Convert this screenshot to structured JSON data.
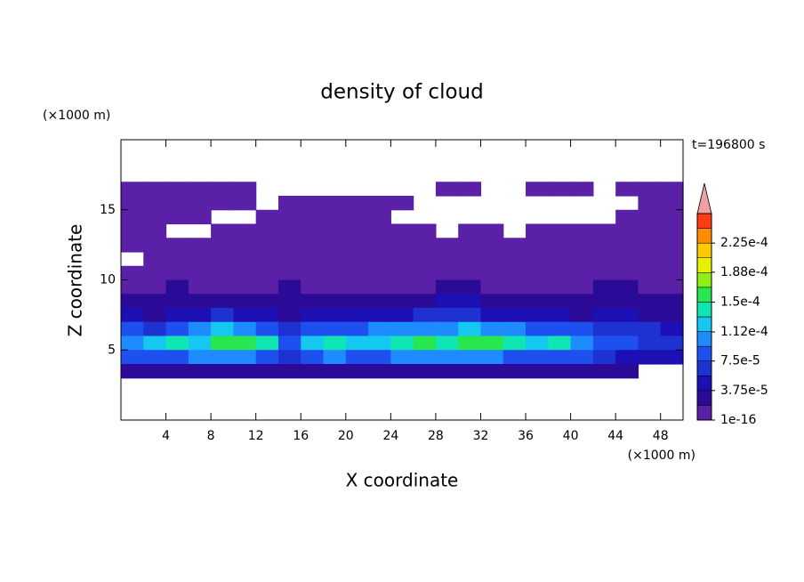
{
  "chart_data": {
    "type": "contour",
    "title": "density of cloud",
    "xlabel": "X coordinate",
    "ylabel": "Z coordinate",
    "x_unit": "(×1000 m)",
    "y_unit": "(×1000 m)",
    "annotation": "t=196800 s",
    "xlim": [
      0,
      50
    ],
    "ylim": [
      0,
      20
    ],
    "xticks": [
      4,
      8,
      12,
      16,
      20,
      24,
      28,
      32,
      36,
      40,
      44,
      48
    ],
    "yticks": [
      5,
      10,
      15
    ],
    "x_centers": [
      1,
      3,
      5,
      7,
      9,
      11,
      13,
      15,
      17,
      19,
      21,
      23,
      25,
      27,
      29,
      31,
      33,
      35,
      37,
      39,
      41,
      43,
      45,
      47,
      49
    ],
    "z_centers": [
      16.5,
      15.5,
      14.5,
      13.5,
      12.5,
      11.5,
      10.5,
      9.5,
      8.5,
      7.5,
      6.5,
      5.5,
      4.5,
      3.5
    ],
    "values": [
      [
        5e-06,
        5e-06,
        5e-06,
        5e-06,
        5e-06,
        5e-06,
        null,
        null,
        null,
        null,
        null,
        null,
        null,
        null,
        5e-06,
        5e-06,
        null,
        null,
        5e-06,
        5e-06,
        5e-06,
        null,
        5e-06,
        5e-06,
        5e-06
      ],
      [
        5e-06,
        5e-06,
        5e-06,
        5e-06,
        5e-06,
        5e-06,
        null,
        5e-06,
        5e-06,
        5e-06,
        5e-06,
        5e-06,
        5e-06,
        null,
        null,
        null,
        null,
        null,
        null,
        null,
        null,
        null,
        null,
        5e-06,
        5e-06
      ],
      [
        5e-06,
        5e-06,
        5e-06,
        5e-06,
        null,
        null,
        5e-06,
        5e-06,
        5e-06,
        5e-06,
        5e-06,
        5e-06,
        null,
        null,
        null,
        null,
        null,
        null,
        null,
        null,
        null,
        null,
        5e-06,
        5e-06,
        5e-06
      ],
      [
        5e-06,
        5e-06,
        null,
        null,
        5e-06,
        5e-06,
        5e-06,
        5e-06,
        5e-06,
        5e-06,
        5e-06,
        5e-06,
        5e-06,
        5e-06,
        null,
        5e-06,
        5e-06,
        null,
        5e-06,
        5e-06,
        5e-06,
        5e-06,
        5e-06,
        5e-06,
        5e-06
      ],
      [
        5e-06,
        5e-06,
        5e-06,
        5e-06,
        5e-06,
        5e-06,
        5e-06,
        5e-06,
        5e-06,
        5e-06,
        5e-06,
        5e-06,
        5e-06,
        5e-06,
        5e-06,
        5e-06,
        5e-06,
        5e-06,
        5e-06,
        5e-06,
        5e-06,
        5e-06,
        5e-06,
        5e-06,
        5e-06
      ],
      [
        null,
        5e-06,
        5e-06,
        5e-06,
        5e-06,
        5e-06,
        5e-06,
        5e-06,
        5e-06,
        5e-06,
        5e-06,
        5e-06,
        5e-06,
        5e-06,
        5e-06,
        5e-06,
        5e-06,
        5e-06,
        5e-06,
        5e-06,
        5e-06,
        5e-06,
        5e-06,
        5e-06,
        5e-06
      ],
      [
        5e-06,
        5e-06,
        5e-06,
        5e-06,
        5e-06,
        5e-06,
        5e-06,
        5e-06,
        5e-06,
        5e-06,
        5e-06,
        5e-06,
        5e-06,
        5e-06,
        5e-06,
        5e-06,
        5e-06,
        5e-06,
        5e-06,
        5e-06,
        5e-06,
        5e-06,
        5e-06,
        5e-06,
        5e-06
      ],
      [
        1e-05,
        1e-05,
        2e-05,
        1e-05,
        1e-05,
        1e-05,
        1e-05,
        2e-05,
        1e-05,
        1e-05,
        1e-05,
        1e-05,
        1e-05,
        1e-05,
        2e-05,
        2e-05,
        1e-05,
        1e-05,
        1e-05,
        1e-05,
        1e-05,
        2e-05,
        2e-05,
        1e-05,
        1e-05
      ],
      [
        2e-05,
        2e-05,
        2e-05,
        2e-05,
        3e-05,
        2e-05,
        2e-05,
        2e-05,
        2e-05,
        2e-05,
        2e-05,
        2e-05,
        2e-05,
        2e-05,
        4e-05,
        4e-05,
        3e-05,
        2e-05,
        2e-05,
        2e-05,
        2e-05,
        3e-05,
        3e-05,
        2e-05,
        2e-05
      ],
      [
        4e-05,
        3e-05,
        5e-05,
        4e-05,
        6e-05,
        5e-05,
        4e-05,
        3e-05,
        4e-05,
        4e-05,
        5e-05,
        5e-05,
        5e-05,
        6e-05,
        6e-05,
        6e-05,
        5e-05,
        5e-05,
        4e-05,
        4e-05,
        3e-05,
        4e-05,
        4e-05,
        3e-05,
        3e-05
      ],
      [
        8e-05,
        7e-05,
        9e-05,
        0.00011,
        0.00012,
        0.00011,
        9e-05,
        6e-05,
        8e-05,
        9e-05,
        9e-05,
        0.0001,
        0.0001,
        0.00011,
        0.00011,
        0.00012,
        0.00011,
        0.0001,
        9e-05,
        9e-05,
        8e-05,
        7e-05,
        6e-05,
        6e-05,
        5e-05
      ],
      [
        0.00011,
        0.00013,
        0.00014,
        0.00013,
        0.00015,
        0.00016,
        0.00014,
        9e-05,
        0.00012,
        0.00014,
        0.00013,
        0.00012,
        0.00014,
        0.00015,
        0.00014,
        0.00016,
        0.00015,
        0.00014,
        0.00013,
        0.00014,
        0.00011,
        9e-05,
        8e-05,
        7e-05,
        6e-05
      ],
      [
        8e-05,
        9e-05,
        9e-05,
        0.0001,
        0.0001,
        0.00011,
        9e-05,
        7e-05,
        9e-05,
        0.0001,
        9e-05,
        9e-05,
        0.0001,
        0.0001,
        0.0001,
        0.0001,
        0.0001,
        9e-05,
        9e-05,
        9e-05,
        8e-05,
        6e-05,
        5e-05,
        5e-05,
        4e-05
      ],
      [
        3e-05,
        3e-05,
        3e-05,
        3e-05,
        3e-05,
        3e-05,
        3e-05,
        2e-05,
        3e-05,
        3e-05,
        3e-05,
        3e-05,
        3e-05,
        3e-05,
        3e-05,
        3e-05,
        3e-05,
        3e-05,
        3e-05,
        3e-05,
        2e-05,
        2e-05,
        2e-05,
        null,
        null
      ]
    ],
    "colorbar": {
      "lim": [
        0,
        0.0002625
      ],
      "colors": [
        "#5a20a8",
        "#2a0a96",
        "#1c10b4",
        "#1e32d2",
        "#1e50f0",
        "#1e8cff",
        "#14c8f0",
        "#10e6b4",
        "#28e650",
        "#8cf014",
        "#e6f000",
        "#ffc800",
        "#ff8c00",
        "#ff3c14"
      ],
      "extend_color": "#f0a0a0",
      "ticks": [
        {
          "value": 1e-16,
          "label": "1e-16"
        },
        {
          "value": 3.75e-05,
          "label": "3.75e-5"
        },
        {
          "value": 7.5e-05,
          "label": "7.5e-5"
        },
        {
          "value": 0.000112,
          "label": "1.12e-4"
        },
        {
          "value": 0.00015,
          "label": "1.5e-4"
        },
        {
          "value": 0.000188,
          "label": "1.88e-4"
        },
        {
          "value": 0.000225,
          "label": "2.25e-4"
        }
      ]
    }
  }
}
